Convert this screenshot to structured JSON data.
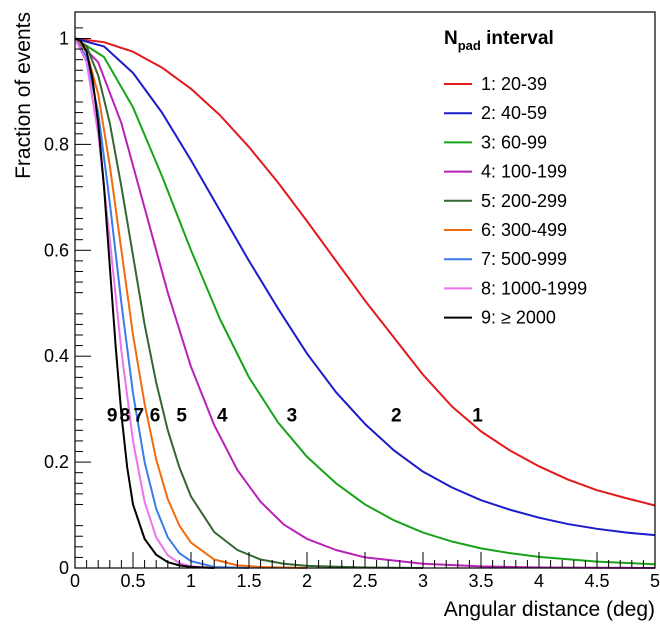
{
  "chart_data": {
    "type": "line",
    "xlabel": "Angular distance (deg)",
    "ylabel": "Fraction of events",
    "xlim": [
      0,
      5
    ],
    "ylim": [
      0,
      1.05
    ],
    "x_ticks": [
      "0",
      "0.5",
      "1",
      "1.5",
      "2",
      "2.5",
      "3",
      "3.5",
      "4",
      "4.5",
      "5"
    ],
    "y_ticks": [
      "0",
      "0.2",
      "0.4",
      "0.6",
      "0.8",
      "1"
    ],
    "legend": {
      "title_main": "N",
      "title_sub": "pad",
      "title_rest": " interval",
      "placement": "top-right"
    },
    "series": [
      {
        "name": "1: 20-39",
        "color": "#e3191c",
        "label": "1",
        "x": [
          0,
          0.25,
          0.5,
          0.75,
          1,
          1.25,
          1.5,
          1.75,
          2,
          2.25,
          2.5,
          2.75,
          3,
          3.25,
          3.5,
          3.75,
          4,
          4.25,
          4.5,
          4.75,
          5
        ],
        "y": [
          1.0,
          0.993,
          0.975,
          0.945,
          0.905,
          0.855,
          0.795,
          0.728,
          0.655,
          0.58,
          0.505,
          0.435,
          0.365,
          0.305,
          0.258,
          0.222,
          0.192,
          0.167,
          0.147,
          0.132,
          0.118
        ]
      },
      {
        "name": "2: 40-59",
        "color": "#1b1bcc",
        "label": "2",
        "x": [
          0,
          0.25,
          0.5,
          0.75,
          1,
          1.25,
          1.5,
          1.75,
          2,
          2.25,
          2.5,
          2.75,
          3,
          3.25,
          3.5,
          3.75,
          4,
          4.25,
          4.5,
          4.75,
          5
        ],
        "y": [
          1.0,
          0.985,
          0.935,
          0.86,
          0.77,
          0.675,
          0.58,
          0.49,
          0.405,
          0.332,
          0.272,
          0.222,
          0.182,
          0.152,
          0.128,
          0.11,
          0.095,
          0.083,
          0.074,
          0.067,
          0.062
        ]
      },
      {
        "name": "3: 60-99",
        "color": "#18a318",
        "label": "3",
        "x": [
          0,
          0.25,
          0.5,
          0.75,
          1,
          1.25,
          1.5,
          1.75,
          2,
          2.25,
          2.5,
          2.75,
          3,
          3.25,
          3.5,
          3.75,
          4,
          4.5,
          5
        ],
        "y": [
          1.0,
          0.965,
          0.87,
          0.74,
          0.6,
          0.47,
          0.36,
          0.275,
          0.21,
          0.16,
          0.12,
          0.09,
          0.067,
          0.05,
          0.037,
          0.028,
          0.021,
          0.012,
          0.007
        ]
      },
      {
        "name": "4: 100-199",
        "color": "#b821b8",
        "label": "4",
        "x": [
          0,
          0.2,
          0.4,
          0.6,
          0.8,
          1,
          1.2,
          1.4,
          1.6,
          1.8,
          2,
          2.25,
          2.5,
          3,
          3.5,
          4,
          5
        ],
        "y": [
          1.0,
          0.955,
          0.84,
          0.68,
          0.52,
          0.38,
          0.27,
          0.185,
          0.125,
          0.082,
          0.055,
          0.034,
          0.02,
          0.008,
          0.003,
          0.001,
          0.0
        ]
      },
      {
        "name": "5: 200-299",
        "color": "#336633",
        "label": "5",
        "x": [
          0,
          0.1,
          0.2,
          0.3,
          0.4,
          0.5,
          0.6,
          0.7,
          0.8,
          0.9,
          1,
          1.2,
          1.4,
          1.6,
          1.8,
          2,
          2.5,
          3
        ],
        "y": [
          1.0,
          0.985,
          0.93,
          0.84,
          0.72,
          0.59,
          0.46,
          0.35,
          0.26,
          0.19,
          0.135,
          0.068,
          0.034,
          0.016,
          0.008,
          0.004,
          0.001,
          0.0
        ]
      },
      {
        "name": "6: 300-499",
        "color": "#f26a0f",
        "label": "6",
        "x": [
          0,
          0.1,
          0.2,
          0.3,
          0.4,
          0.5,
          0.6,
          0.7,
          0.8,
          0.9,
          1,
          1.2,
          1.4,
          1.6,
          2
        ],
        "y": [
          1.0,
          0.975,
          0.895,
          0.76,
          0.6,
          0.44,
          0.31,
          0.205,
          0.13,
          0.08,
          0.048,
          0.016,
          0.005,
          0.002,
          0.0
        ]
      },
      {
        "name": "7: 500-999",
        "color": "#3a7ce8",
        "label": "7",
        "x": [
          0,
          0.1,
          0.2,
          0.3,
          0.4,
          0.5,
          0.6,
          0.7,
          0.8,
          0.9,
          1,
          1.2,
          1.5
        ],
        "y": [
          1.0,
          0.965,
          0.86,
          0.69,
          0.5,
          0.33,
          0.2,
          0.112,
          0.058,
          0.028,
          0.013,
          0.002,
          0.0
        ]
      },
      {
        "name": "8: 1000-1999",
        "color": "#ee72ee",
        "label": "8",
        "x": [
          0,
          0.1,
          0.2,
          0.3,
          0.4,
          0.5,
          0.6,
          0.7,
          0.8,
          0.9,
          1,
          1.2
        ],
        "y": [
          1.0,
          0.955,
          0.82,
          0.62,
          0.41,
          0.24,
          0.125,
          0.058,
          0.024,
          0.009,
          0.003,
          0.0
        ]
      },
      {
        "name": "9: ≥ 2000",
        "color": "#000000",
        "label": "9",
        "x": [
          0,
          0.05,
          0.1,
          0.15,
          0.2,
          0.25,
          0.3,
          0.35,
          0.4,
          0.45,
          0.5,
          0.6,
          0.7,
          0.8,
          0.9,
          1.0,
          1.1,
          1.2
        ],
        "y": [
          1.0,
          0.995,
          0.975,
          0.925,
          0.84,
          0.72,
          0.57,
          0.42,
          0.29,
          0.19,
          0.12,
          0.055,
          0.025,
          0.011,
          0.005,
          0.002,
          0.001,
          0.0
        ]
      }
    ],
    "curve_labels": [
      {
        "text": "9",
        "x": 0.32,
        "y": 0.29
      },
      {
        "text": "8",
        "x": 0.43,
        "y": 0.29
      },
      {
        "text": "7",
        "x": 0.55,
        "y": 0.29
      },
      {
        "text": "6",
        "x": 0.69,
        "y": 0.29
      },
      {
        "text": "5",
        "x": 0.92,
        "y": 0.29
      },
      {
        "text": "4",
        "x": 1.27,
        "y": 0.29
      },
      {
        "text": "3",
        "x": 1.87,
        "y": 0.29
      },
      {
        "text": "2",
        "x": 2.77,
        "y": 0.29
      },
      {
        "text": "1",
        "x": 3.47,
        "y": 0.29
      }
    ]
  }
}
